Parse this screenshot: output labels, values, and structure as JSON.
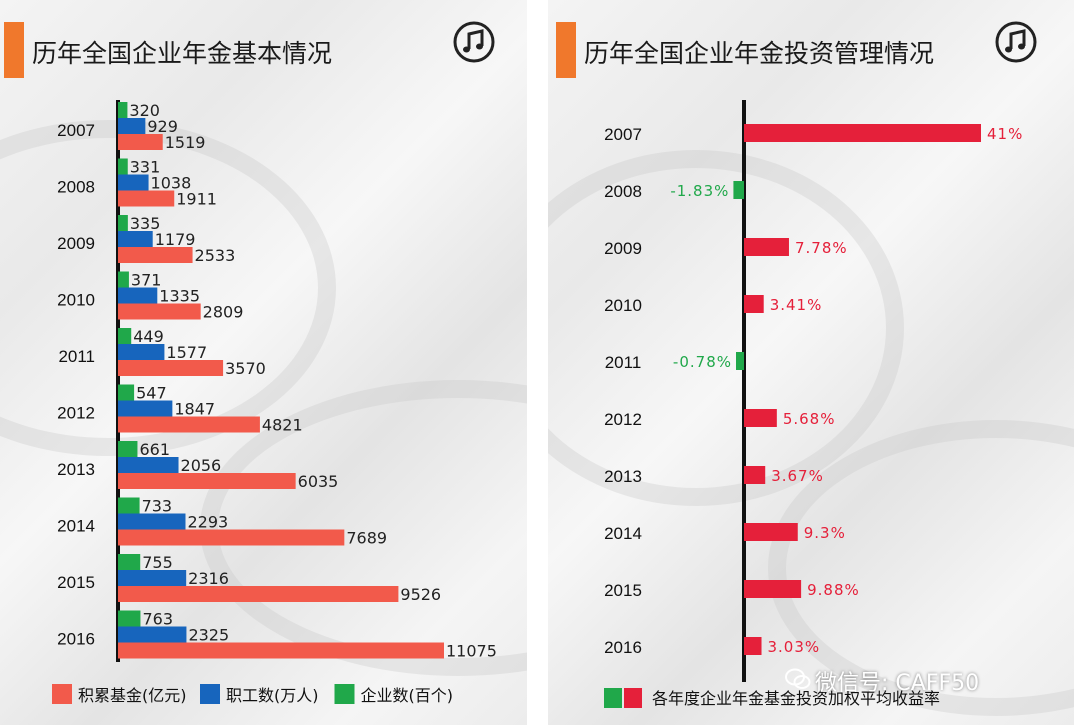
{
  "panels": {
    "left": {
      "title": "历年全国企业年金基本情况"
    },
    "right": {
      "title": "历年全国企业年金投资管理情况"
    }
  },
  "icons": {
    "panel_icon": "music-note-icon",
    "watermark_icon": "wechat-icon"
  },
  "watermark": {
    "text": "微信号: CAFF50"
  },
  "colors": {
    "accent": "#f0782c",
    "fund": "#f25a4b",
    "employees": "#1765bd",
    "companies": "#20a84a",
    "return_pos": "#e5203a",
    "return_neg": "#20a84a"
  },
  "chart_data": [
    {
      "type": "bar",
      "orientation": "horizontal",
      "title": "历年全国企业年金基本情况",
      "categories": [
        "2007",
        "2008",
        "2009",
        "2010",
        "2011",
        "2012",
        "2013",
        "2014",
        "2015",
        "2016"
      ],
      "series": [
        {
          "name": "企业数(百个)",
          "color": "#20a84a",
          "values": [
            320,
            331,
            335,
            371,
            449,
            547,
            661,
            733,
            755,
            763
          ]
        },
        {
          "name": "职工数(万人)",
          "color": "#1765bd",
          "values": [
            929,
            1038,
            1179,
            1335,
            1577,
            1847,
            2056,
            2293,
            2316,
            2325
          ]
        },
        {
          "name": "积累基金(亿元)",
          "color": "#f25a4b",
          "values": [
            1519,
            1911,
            2533,
            2809,
            3570,
            4821,
            6035,
            7689,
            9526,
            11075
          ]
        }
      ],
      "legend": [
        {
          "label": "积累基金(亿元)",
          "color": "#f25a4b"
        },
        {
          "label": "职工数(万人)",
          "color": "#1765bd"
        },
        {
          "label": "企业数(百个)",
          "color": "#20a84a"
        }
      ],
      "legend_position": "bottom"
    },
    {
      "type": "bar",
      "orientation": "horizontal",
      "title": "历年全国企业年金投资管理情况",
      "categories": [
        "2007",
        "2008",
        "2009",
        "2010",
        "2011",
        "2012",
        "2013",
        "2014",
        "2015",
        "2016"
      ],
      "series": [
        {
          "name": "各年度企业年金基金投资加权平均收益率",
          "values": [
            41,
            -1.83,
            7.78,
            3.41,
            -0.78,
            5.68,
            3.67,
            9.3,
            9.88,
            3.03
          ]
        }
      ],
      "value_labels": [
        "41%",
        "-1.83%",
        "7.78%",
        "3.41%",
        "-0.78%",
        "5.68%",
        "3.67%",
        "9.3%",
        "9.88%",
        "3.03%"
      ],
      "legend": [
        {
          "label": "各年度企业年金基金投资加权平均收益率"
        }
      ],
      "legend_position": "bottom"
    }
  ]
}
